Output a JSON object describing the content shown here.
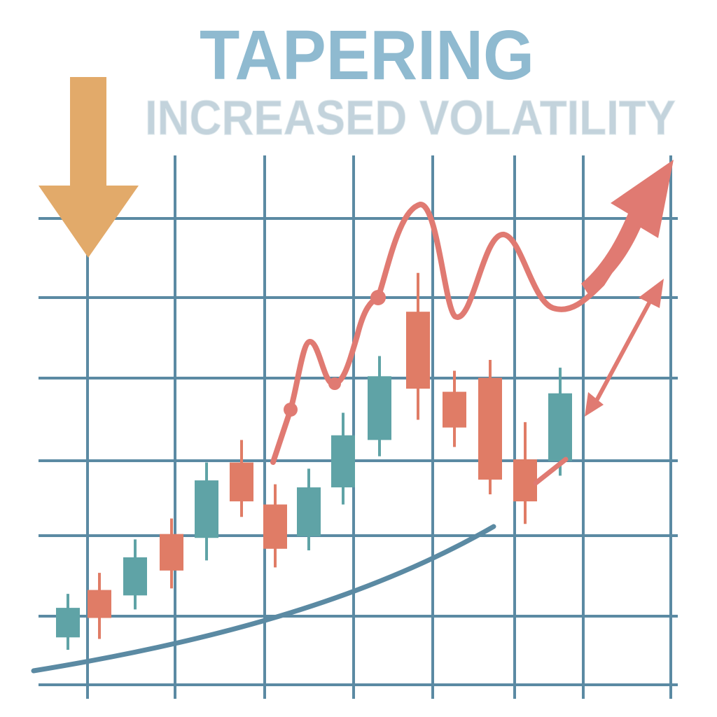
{
  "chart_data": {
    "type": "candlestick",
    "title": "TAPERING",
    "subtitle": "INCREASED VOLATILITY",
    "xlabel": "",
    "ylabel": "",
    "ylim": [
      0,
      60
    ],
    "grid": true,
    "legend": "none",
    "colors": {
      "up": "#5fa3a6",
      "down": "#e07c66",
      "grid": "#5b8aa3",
      "trend": "#5b8aa3",
      "volatility_line": "#e07a72",
      "down_arrow": "#e2aa6a",
      "title": "#8fbad0",
      "subtitle": "#c3d3dc"
    },
    "candles": [
      {
        "open": 6.1,
        "close": 9.9,
        "high": 11.7,
        "low": 4.5
      },
      {
        "open": 12.2,
        "close": 8.6,
        "high": 14.4,
        "low": 5.9
      },
      {
        "open": 11.5,
        "close": 16.4,
        "high": 18.7,
        "low": 9.7
      },
      {
        "open": 19.4,
        "close": 14.7,
        "high": 21.4,
        "low": 12.4
      },
      {
        "open": 18.9,
        "close": 26.3,
        "high": 28.6,
        "low": 16.0
      },
      {
        "open": 28.6,
        "close": 23.6,
        "high": 31.5,
        "low": 21.6
      },
      {
        "open": 23.2,
        "close": 17.5,
        "high": 25.8,
        "low": 15.1
      },
      {
        "open": 19.1,
        "close": 25.4,
        "high": 27.8,
        "low": 17.3
      },
      {
        "open": 25.4,
        "close": 32.1,
        "high": 35.0,
        "low": 23.2
      },
      {
        "open": 31.5,
        "close": 39.7,
        "high": 42.3,
        "low": 29.4
      },
      {
        "open": 48.0,
        "close": 38.1,
        "high": 53.0,
        "low": 34.1
      },
      {
        "open": 37.7,
        "close": 33.1,
        "high": 40.4,
        "low": 30.6
      },
      {
        "open": 39.5,
        "close": 26.4,
        "high": 41.8,
        "low": 24.5
      },
      {
        "open": 29.0,
        "close": 23.6,
        "high": 33.8,
        "low": 20.7
      },
      {
        "open": 28.8,
        "close": 37.5,
        "high": 40.8,
        "low": 26.9
      }
    ]
  }
}
